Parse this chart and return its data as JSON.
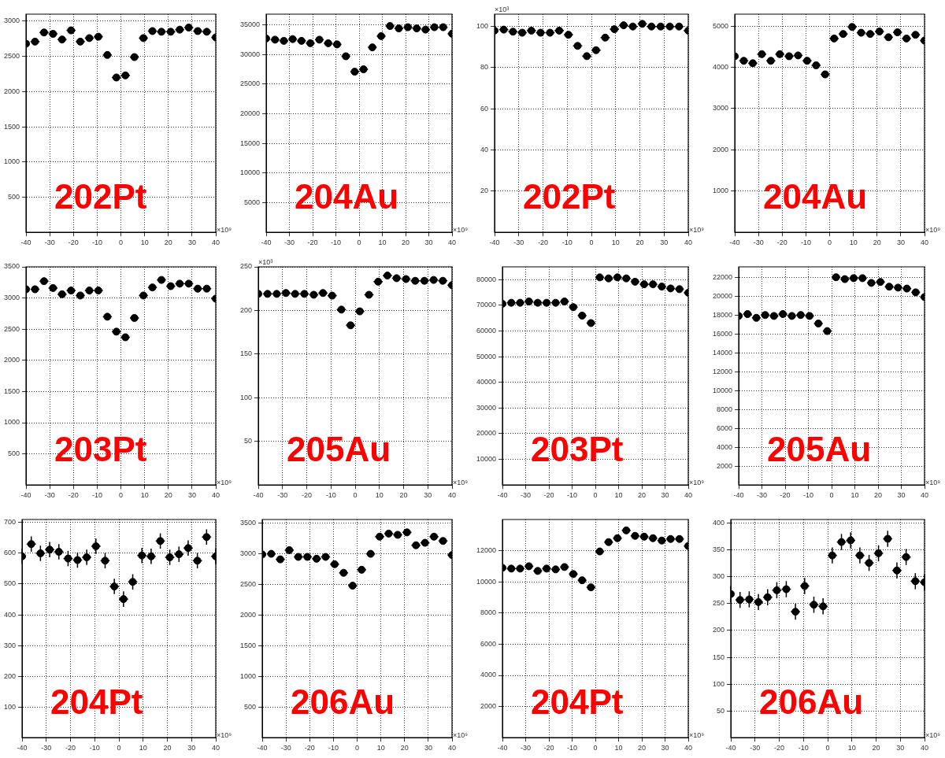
{
  "chart_data": [
    {
      "type": "scatter",
      "title": "202Pt",
      "xlabel": "×10⁹",
      "x": [
        -40,
        -36.2,
        -32.4,
        -28.6,
        -24.8,
        -21,
        -17.1,
        -13.3,
        -9.5,
        -5.7,
        -1.9,
        1.9,
        5.7,
        9.5,
        13.3,
        17.1,
        21,
        24.8,
        28.6,
        32.4,
        36.2,
        40
      ],
      "series": [
        {
          "color": "#000000",
          "values": [
            2680,
            2710,
            2840,
            2820,
            2740,
            2870,
            2710,
            2760,
            2780,
            2520,
            2200,
            2230,
            2490,
            2760,
            2860,
            2850,
            2850,
            2880,
            2910,
            2860,
            2850,
            2770
          ],
          "xerrors": [
            null,
            1.9,
            1.9,
            1.9,
            1.9,
            1.9,
            1.9,
            1.9,
            1.9,
            1.9,
            1.9,
            1.9,
            1.9,
            1.9,
            1.9,
            1.9,
            1.9,
            1.9,
            1.9,
            1.9,
            1.9,
            [
              38.1,
              40
            ]
          ]
        }
      ],
      "xlim": [
        -40,
        40
      ],
      "xticks": [
        -40,
        -30,
        -20,
        -10,
        0,
        10,
        20,
        30,
        40
      ],
      "ylim": [
        0,
        3100
      ],
      "yticks": [
        500,
        1000,
        1500,
        2000,
        2500,
        3000
      ],
      "grid": true,
      "marker": "circle"
    },
    {
      "type": "scatter",
      "title": "204Au",
      "xlabel": "×10⁹",
      "x": [
        -40,
        -36.2,
        -32.4,
        -28.6,
        -24.8,
        -21,
        -17.1,
        -13.3,
        -9.5,
        -5.7,
        -1.9,
        1.9,
        5.7,
        9.5,
        13.3,
        17.1,
        21,
        24.8,
        28.6,
        32.4,
        36.2,
        40
      ],
      "series": [
        {
          "color": "#000000",
          "values": [
            32700,
            32500,
            32300,
            32600,
            32300,
            31900,
            32500,
            31900,
            31700,
            29700,
            27100,
            27500,
            31200,
            33100,
            34800,
            34400,
            34600,
            34400,
            34200,
            34600,
            34600,
            33500
          ],
          "xerrors": [
            null,
            1.9,
            1.9,
            1.9,
            1.9,
            1.9,
            1.9,
            1.9,
            1.9,
            1.9,
            1.9,
            1.9,
            1.9,
            1.9,
            1.9,
            1.9,
            1.9,
            1.9,
            1.9,
            1.9,
            1.9,
            [
              38.1,
              40
            ]
          ]
        }
      ],
      "xlim": [
        -40,
        40
      ],
      "xticks": [
        -40,
        -30,
        -20,
        -10,
        0,
        10,
        20,
        30,
        40
      ],
      "ylim": [
        0,
        36800
      ],
      "yticks": [
        5000,
        10000,
        15000,
        20000,
        25000,
        30000,
        35000
      ],
      "grid": true,
      "marker": "circle"
    },
    {
      "type": "scatter",
      "title": "202Pt",
      "xlabel": "×10⁹",
      "ylabel": "×10³",
      "x": [
        -40,
        -36.2,
        -32.4,
        -28.6,
        -24.8,
        -21,
        -17.1,
        -13.3,
        -9.5,
        -5.7,
        -1.9,
        1.9,
        5.7,
        9.5,
        13.3,
        17.1,
        21,
        24.8,
        28.6,
        32.4,
        36.2,
        40
      ],
      "series": [
        {
          "color": "#000000",
          "values": [
            98,
            98.5,
            97.5,
            97,
            98,
            97,
            97,
            98,
            96,
            90.6,
            85.6,
            88.5,
            94.6,
            98.7,
            100.6,
            100,
            101.3,
            100,
            100,
            100,
            100,
            98
          ],
          "xerrors": [
            null,
            1.9,
            1.9,
            1.9,
            1.9,
            1.9,
            1.9,
            1.9,
            1.9,
            1.9,
            1.9,
            1.9,
            1.9,
            1.9,
            1.9,
            1.9,
            1.9,
            1.9,
            1.9,
            1.9,
            1.9,
            [
              38.1,
              40
            ]
          ]
        }
      ],
      "xlim": [
        -40,
        40
      ],
      "xticks": [
        -40,
        -30,
        -20,
        -10,
        0,
        10,
        20,
        30,
        40
      ],
      "ylim": [
        0,
        106
      ],
      "yticks": [
        20,
        40,
        60,
        80,
        100
      ],
      "grid": true,
      "marker": "circle"
    },
    {
      "type": "scatter",
      "title": "204Au",
      "xlabel": "×10⁹",
      "x": [
        -40,
        -36.2,
        -32.4,
        -28.6,
        -24.8,
        -21,
        -17.1,
        -13.3,
        -9.5,
        -5.7,
        -1.9,
        1.9,
        5.7,
        9.5,
        13.3,
        17.1,
        21,
        24.8,
        28.6,
        32.4,
        36.2,
        40
      ],
      "series": [
        {
          "color": "#000000",
          "values": [
            4270,
            4160,
            4100,
            4320,
            4160,
            4320,
            4270,
            4290,
            4160,
            4050,
            3830,
            4700,
            4810,
            4980,
            4840,
            4810,
            4870,
            4730,
            4850,
            4700,
            4790,
            4650
          ],
          "xerrors": [
            null,
            1.9,
            1.9,
            1.9,
            1.9,
            1.9,
            1.9,
            1.9,
            1.9,
            1.9,
            1.9,
            1.9,
            1.9,
            1.9,
            1.9,
            1.9,
            1.9,
            1.9,
            1.9,
            1.9,
            1.9,
            [
              38.1,
              40
            ]
          ]
        }
      ],
      "xlim": [
        -40,
        40
      ],
      "xticks": [
        -40,
        -30,
        -20,
        -10,
        0,
        10,
        20,
        30,
        40
      ],
      "ylim": [
        0,
        5290
      ],
      "yticks": [
        1000,
        2000,
        3000,
        4000,
        5000
      ],
      "grid": true,
      "marker": "circle"
    },
    {
      "type": "scatter",
      "title": "203Pt",
      "xlabel": "×10⁹",
      "x": [
        -40,
        -36.2,
        -32.4,
        -28.6,
        -24.8,
        -21,
        -17.1,
        -13.3,
        -9.5,
        -5.7,
        -1.9,
        1.9,
        5.7,
        9.5,
        13.3,
        17.1,
        21,
        24.8,
        28.6,
        32.4,
        36.2,
        40
      ],
      "series": [
        {
          "color": "#000000",
          "values": [
            3140,
            3140,
            3270,
            3160,
            3060,
            3120,
            3040,
            3120,
            3120,
            2700,
            2460,
            2370,
            2680,
            3040,
            3170,
            3290,
            3190,
            3230,
            3230,
            3150,
            3150,
            2990
          ],
          "xerrors": [
            null,
            1.9,
            1.9,
            1.9,
            1.9,
            1.9,
            1.9,
            1.9,
            1.9,
            1.9,
            1.9,
            1.9,
            1.9,
            1.9,
            1.9,
            1.9,
            1.9,
            1.9,
            1.9,
            1.9,
            1.9,
            [
              38.1,
              40
            ]
          ]
        }
      ],
      "xlim": [
        -40,
        40
      ],
      "xticks": [
        -40,
        -30,
        -20,
        -10,
        0,
        10,
        20,
        30,
        40
      ],
      "ylim": [
        0,
        3500
      ],
      "yticks": [
        500,
        1000,
        1500,
        2000,
        2500,
        3000,
        3500
      ],
      "grid": true,
      "marker": "circle"
    },
    {
      "type": "scatter",
      "title": "205Au",
      "xlabel": "×10⁹",
      "ylabel": "×10³",
      "x": [
        -40,
        -36.2,
        -32.4,
        -28.6,
        -24.8,
        -21,
        -17.1,
        -13.3,
        -9.5,
        -5.7,
        -1.9,
        1.9,
        5.7,
        9.5,
        13.3,
        17.1,
        21,
        24.8,
        28.6,
        32.4,
        36.2,
        40
      ],
      "series": [
        {
          "color": "#000000",
          "values": [
            219,
            219,
            219,
            220,
            219,
            219,
            218,
            220,
            217,
            201,
            183,
            199,
            218,
            233,
            240,
            237,
            236,
            234,
            234,
            235,
            234,
            229
          ],
          "xerrors": [
            null,
            1.9,
            1.9,
            1.9,
            1.9,
            1.9,
            1.9,
            1.9,
            1.9,
            1.9,
            1.9,
            1.9,
            1.9,
            1.9,
            1.9,
            1.9,
            1.9,
            1.9,
            1.9,
            1.9,
            1.9,
            [
              38.1,
              40
            ]
          ]
        }
      ],
      "xlim": [
        -40,
        40
      ],
      "xticks": [
        -40,
        -30,
        -20,
        -10,
        0,
        10,
        20,
        30,
        40
      ],
      "ylim": [
        0,
        250
      ],
      "yticks": [
        50,
        100,
        150,
        200,
        250
      ],
      "grid": true,
      "marker": "circle"
    },
    {
      "type": "scatter",
      "title": "203Pt",
      "xlabel": "×10⁹",
      "x": [
        -40,
        -36.2,
        -32.4,
        -28.6,
        -24.8,
        -21,
        -17.1,
        -13.3,
        -9.5,
        -5.7,
        -1.9,
        1.9,
        5.7,
        9.5,
        13.3,
        17.1,
        21,
        24.8,
        28.6,
        32.4,
        36.2,
        40
      ],
      "series": [
        {
          "color": "#000000",
          "values": [
            70600,
            71000,
            71000,
            71500,
            71000,
            71000,
            71000,
            71500,
            69300,
            66000,
            63100,
            80900,
            80500,
            80900,
            80500,
            79200,
            78200,
            78200,
            77300,
            76600,
            76300,
            74900
          ],
          "xerrors": [
            null,
            1.9,
            1.9,
            1.9,
            1.9,
            1.9,
            1.9,
            1.9,
            1.9,
            1.9,
            1.9,
            1.9,
            1.9,
            1.9,
            1.9,
            1.9,
            1.9,
            1.9,
            1.9,
            1.9,
            1.9,
            [
              38.1,
              40
            ]
          ]
        }
      ],
      "xlim": [
        -40,
        40
      ],
      "xticks": [
        -40,
        -30,
        -20,
        -10,
        0,
        10,
        20,
        30,
        40
      ],
      "ylim": [
        0,
        85000
      ],
      "yticks": [
        10000,
        20000,
        30000,
        40000,
        50000,
        60000,
        70000,
        80000
      ],
      "grid": true,
      "marker": "circle"
    },
    {
      "type": "scatter",
      "title": "205Au",
      "xlabel": "×10⁹",
      "x": [
        -40,
        -36.2,
        -32.4,
        -28.6,
        -24.8,
        -21,
        -17.1,
        -13.3,
        -9.5,
        -5.7,
        -1.9,
        1.9,
        5.7,
        9.5,
        13.3,
        17.1,
        21,
        24.8,
        28.6,
        32.4,
        36.2,
        40
      ],
      "series": [
        {
          "color": "#000000",
          "values": [
            17900,
            18100,
            17700,
            18000,
            17900,
            18100,
            17900,
            18000,
            17900,
            17100,
            16300,
            22000,
            21800,
            21900,
            21900,
            21400,
            21500,
            21000,
            20900,
            20800,
            20400,
            19900
          ],
          "xerrors": [
            null,
            1.9,
            1.9,
            1.9,
            1.9,
            1.9,
            1.9,
            1.9,
            1.9,
            1.9,
            1.9,
            1.9,
            1.9,
            1.9,
            1.9,
            1.9,
            1.9,
            1.9,
            1.9,
            1.9,
            1.9,
            [
              38.1,
              40
            ]
          ]
        }
      ],
      "xlim": [
        -40,
        40
      ],
      "xticks": [
        -40,
        -30,
        -20,
        -10,
        0,
        10,
        20,
        30,
        40
      ],
      "ylim": [
        0,
        23100
      ],
      "yticks": [
        2000,
        4000,
        6000,
        8000,
        10000,
        12000,
        14000,
        16000,
        18000,
        20000,
        22000
      ],
      "grid": true,
      "marker": "circle"
    },
    {
      "type": "scatter",
      "title": "204Pt",
      "xlabel": "×10⁹",
      "x": [
        -40,
        -36.2,
        -32.4,
        -28.6,
        -24.8,
        -21,
        -17.1,
        -13.3,
        -9.5,
        -5.7,
        -1.9,
        1.9,
        5.7,
        9.5,
        13.3,
        17.1,
        21,
        24.8,
        28.6,
        32.4,
        36.2,
        40
      ],
      "series": [
        {
          "color": "#000000",
          "values": [
            590,
            630,
            600,
            612,
            605,
            583,
            578,
            587,
            623,
            576,
            492,
            451,
            507,
            593,
            590,
            640,
            587,
            597,
            617,
            576,
            653,
            590
          ],
          "errors": [
            25,
            25,
            25,
            25,
            25,
            25,
            25,
            25,
            25,
            25,
            25,
            25,
            25,
            25,
            25,
            25,
            25,
            25,
            25,
            25,
            25,
            25
          ],
          "xerrors": [
            null,
            1.9,
            1.9,
            1.9,
            1.9,
            1.9,
            1.9,
            1.9,
            1.9,
            1.9,
            1.9,
            1.9,
            1.9,
            1.9,
            1.9,
            1.9,
            1.9,
            1.9,
            1.9,
            1.9,
            1.9,
            [
              38.1,
              40
            ]
          ]
        }
      ],
      "xlim": [
        -40,
        40
      ],
      "xticks": [
        -40,
        -30,
        -20,
        -10,
        0,
        10,
        20,
        30,
        40
      ],
      "ylim": [
        0,
        710
      ],
      "yticks": [
        100,
        200,
        300,
        400,
        500,
        600,
        700
      ],
      "grid": true,
      "marker": "circle"
    },
    {
      "type": "scatter",
      "title": "206Au",
      "xlabel": "×10⁹",
      "x": [
        -40,
        -36.2,
        -32.4,
        -28.6,
        -24.8,
        -21,
        -17.1,
        -13.3,
        -9.5,
        -5.7,
        -1.9,
        1.9,
        5.7,
        9.5,
        13.3,
        17.1,
        21,
        24.8,
        28.6,
        32.4,
        36.2,
        40
      ],
      "series": [
        {
          "color": "#000000",
          "values": [
            2990,
            3000,
            2910,
            3060,
            2950,
            2950,
            2920,
            2950,
            2830,
            2690,
            2480,
            2740,
            3000,
            3280,
            3330,
            3310,
            3350,
            3140,
            3180,
            3280,
            3210,
            2980
          ],
          "xerrors": [
            null,
            1.9,
            1.9,
            1.9,
            1.9,
            1.9,
            1.9,
            1.9,
            1.9,
            1.9,
            1.9,
            1.9,
            1.9,
            1.9,
            1.9,
            1.9,
            1.9,
            1.9,
            1.9,
            1.9,
            1.9,
            [
              38.1,
              40
            ]
          ]
        }
      ],
      "xlim": [
        -40,
        40
      ],
      "xticks": [
        -40,
        -30,
        -20,
        -10,
        0,
        10,
        20,
        30,
        40
      ],
      "ylim": [
        0,
        3560
      ],
      "yticks": [
        500,
        1000,
        1500,
        2000,
        2500,
        3000,
        3500
      ],
      "grid": true,
      "marker": "circle"
    },
    {
      "type": "scatter",
      "title": "204Pt",
      "xlabel": "×10⁹",
      "x": [
        -40,
        -36.2,
        -32.4,
        -28.6,
        -24.8,
        -21,
        -17.1,
        -13.3,
        -9.5,
        -5.7,
        -1.9,
        1.9,
        5.7,
        9.5,
        13.3,
        17.1,
        21,
        24.8,
        28.6,
        32.4,
        36.2,
        40
      ],
      "series": [
        {
          "color": "#000000",
          "values": [
            10900,
            10850,
            10850,
            11000,
            10700,
            10850,
            10800,
            10950,
            10500,
            10100,
            9650,
            11950,
            12550,
            12800,
            13300,
            12950,
            12900,
            12800,
            12650,
            12750,
            12750,
            12300
          ],
          "xerrors": [
            null,
            1.9,
            1.9,
            1.9,
            1.9,
            1.9,
            1.9,
            1.9,
            1.9,
            1.9,
            1.9,
            1.9,
            1.9,
            1.9,
            1.9,
            1.9,
            1.9,
            1.9,
            1.9,
            1.9,
            1.9,
            [
              38.1,
              40
            ]
          ]
        }
      ],
      "xlim": [
        -40,
        40
      ],
      "xticks": [
        -40,
        -30,
        -20,
        -10,
        0,
        10,
        20,
        30,
        40
      ],
      "ylim": [
        0,
        14000
      ],
      "yticks": [
        2000,
        4000,
        6000,
        8000,
        10000,
        12000
      ],
      "grid": true,
      "marker": "circle"
    },
    {
      "type": "scatter",
      "title": "206Au",
      "xlabel": "×10⁹",
      "x": [
        -40,
        -36.2,
        -32.4,
        -28.6,
        -24.8,
        -21,
        -17.1,
        -13.3,
        -9.5,
        -5.7,
        -1.9,
        1.9,
        5.7,
        9.5,
        13.3,
        17.1,
        21,
        24.8,
        28.6,
        32.4,
        36.2,
        40
      ],
      "series": [
        {
          "color": "#000000",
          "values": [
            268,
            257,
            258,
            253,
            262,
            275,
            277,
            235,
            283,
            248,
            245,
            340,
            365,
            368,
            340,
            326,
            344,
            371,
            312,
            337,
            292,
            290
          ],
          "errors": [
            15,
            15,
            15,
            15,
            15,
            15,
            15,
            15,
            15,
            15,
            15,
            15,
            15,
            15,
            15,
            15,
            15,
            15,
            15,
            15,
            15,
            15
          ],
          "xerrors": [
            null,
            1.9,
            1.9,
            1.9,
            1.9,
            1.9,
            1.9,
            1.9,
            1.9,
            1.9,
            1.9,
            1.9,
            1.9,
            1.9,
            1.9,
            1.9,
            1.9,
            1.9,
            1.9,
            1.9,
            1.9,
            [
              38.1,
              40
            ]
          ]
        }
      ],
      "xlim": [
        -40,
        40
      ],
      "xticks": [
        -40,
        -30,
        -20,
        -10,
        0,
        10,
        20,
        30,
        40
      ],
      "ylim": [
        0,
        407
      ],
      "yticks": [
        50,
        100,
        150,
        200,
        250,
        300,
        350,
        400
      ],
      "grid": true,
      "marker": "circle"
    }
  ]
}
